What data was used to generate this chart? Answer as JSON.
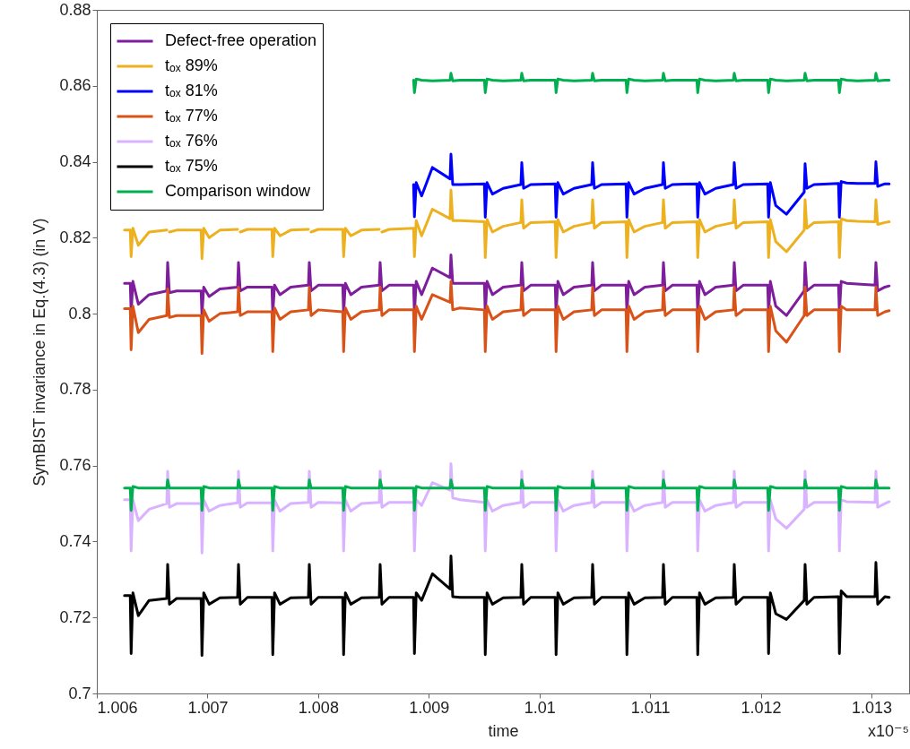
{
  "chart_data": {
    "type": "line",
    "xlabel": "time",
    "ylabel": "SymBIST invariance in Eq.(4.3) (in V)",
    "annotations": [
      "x10⁻⁵"
    ],
    "xlim": [
      1.006,
      1.01334
    ],
    "xticks": [
      1.006,
      1.007,
      1.008,
      1.009,
      1.01,
      1.011,
      1.012,
      1.013
    ],
    "ylim": [
      0.7,
      0.88
    ],
    "yticks": [
      0.7,
      0.72,
      0.74,
      0.76,
      0.78,
      0.8,
      0.82,
      0.84,
      0.86,
      0.88
    ],
    "grid": false,
    "legend": "top left",
    "x": [
      1.00625,
      1.006302,
      1.00631,
      1.006326,
      1.006375,
      1.006472,
      1.006632,
      1.00664,
      1.006656,
      1.006721,
      1.006942,
      1.00695,
      1.006966,
      1.007015,
      1.007112,
      1.007272,
      1.00728,
      1.007296,
      1.007361,
      1.007582,
      1.00759,
      1.007606,
      1.007655,
      1.007752,
      1.007912,
      1.00792,
      1.007936,
      1.008001,
      1.008222,
      1.00823,
      1.008246,
      1.008295,
      1.008392,
      1.008552,
      1.00856,
      1.008576,
      1.008641,
      1.008862,
      1.00887,
      1.008886,
      1.008935,
      1.009032,
      1.009192,
      1.0092,
      1.009216,
      1.009281,
      1.009502,
      1.00951,
      1.009526,
      1.009575,
      1.009672,
      1.009832,
      1.00984,
      1.009856,
      1.009921,
      1.010142,
      1.01015,
      1.010166,
      1.010215,
      1.010312,
      1.010472,
      1.01048,
      1.010496,
      1.010561,
      1.010782,
      1.01079,
      1.010806,
      1.010855,
      1.010952,
      1.011112,
      1.01112,
      1.011136,
      1.011201,
      1.011422,
      1.01143,
      1.011446,
      1.011495,
      1.011592,
      1.011752,
      1.01176,
      1.011776,
      1.011841,
      1.012062,
      1.01207,
      1.012086,
      1.012135,
      1.012232,
      1.012392,
      1.0124,
      1.012416,
      1.012481,
      1.012702,
      1.01271,
      1.012726,
      1.012775,
      1.012872,
      1.013032,
      1.01304,
      1.013056,
      1.013121,
      1.01316
    ],
    "series": [
      {
        "name": "Defect-free operation",
        "color": "#7e1e9c",
        "values": [
          0.808,
          0.808,
          0.8,
          0.8085,
          0.8025,
          0.805,
          0.806,
          0.8135,
          0.8055,
          0.806,
          0.806,
          0.7995,
          0.807,
          0.8045,
          0.8065,
          0.807,
          0.8135,
          0.806,
          0.807,
          0.807,
          0.8,
          0.8075,
          0.805,
          0.807,
          0.8075,
          0.8135,
          0.806,
          0.8075,
          0.8075,
          0.8,
          0.808,
          0.805,
          0.807,
          0.8075,
          0.8135,
          0.806,
          0.8075,
          0.8075,
          0.8,
          0.8085,
          0.805,
          0.812,
          0.8095,
          0.8155,
          0.808,
          0.808,
          0.808,
          0.8,
          0.8085,
          0.805,
          0.807,
          0.8075,
          0.8135,
          0.806,
          0.8075,
          0.8075,
          0.8,
          0.8085,
          0.805,
          0.807,
          0.8075,
          0.8135,
          0.806,
          0.8075,
          0.8075,
          0.8,
          0.8085,
          0.805,
          0.807,
          0.8075,
          0.8135,
          0.806,
          0.8075,
          0.8075,
          0.8,
          0.8085,
          0.805,
          0.807,
          0.8075,
          0.8135,
          0.806,
          0.8075,
          0.8075,
          0.8,
          0.8085,
          0.802,
          0.7995,
          0.806,
          0.8135,
          0.806,
          0.8075,
          0.8075,
          0.8,
          0.8085,
          0.808,
          0.8078,
          0.8075,
          0.8135,
          0.806,
          0.807,
          0.8073
        ]
      },
      {
        "name": "tₒₓ 89%",
        "color": "#edb120",
        "values": [
          0.822,
          0.822,
          0.815,
          0.8225,
          0.818,
          0.8215,
          0.822,
          null,
          0.8215,
          0.822,
          0.822,
          0.8145,
          0.8225,
          0.82,
          0.822,
          0.8222,
          null,
          0.8215,
          0.8222,
          0.8222,
          0.815,
          0.8225,
          0.8205,
          0.822,
          0.8222,
          null,
          0.8215,
          0.8222,
          0.8222,
          0.815,
          0.8225,
          0.8205,
          0.822,
          0.8222,
          null,
          0.8215,
          0.8222,
          0.8225,
          0.815,
          0.8245,
          0.8205,
          0.8275,
          0.825,
          0.8325,
          0.8245,
          0.8245,
          0.8242,
          0.8148,
          0.8248,
          0.8215,
          0.823,
          0.824,
          0.83,
          0.8225,
          0.824,
          0.8242,
          0.8148,
          0.8248,
          0.8215,
          0.823,
          0.824,
          0.83,
          0.8225,
          0.824,
          0.8242,
          0.8148,
          0.8248,
          0.8215,
          0.823,
          0.824,
          0.83,
          0.8225,
          0.824,
          0.8242,
          0.8148,
          0.8248,
          0.8215,
          0.823,
          0.824,
          0.83,
          0.8225,
          0.824,
          0.8242,
          0.8148,
          0.8248,
          0.819,
          0.8163,
          0.822,
          0.83,
          0.8225,
          0.824,
          0.8242,
          0.8148,
          0.825,
          0.8245,
          0.8243,
          0.8242,
          0.83,
          0.8235,
          0.824,
          0.8242
        ]
      },
      {
        "name": "tₒₓ 81%",
        "color": "#0000ff",
        "values": [
          null,
          null,
          null,
          null,
          null,
          null,
          null,
          null,
          null,
          null,
          null,
          null,
          null,
          null,
          null,
          null,
          null,
          null,
          null,
          null,
          null,
          null,
          null,
          null,
          null,
          null,
          null,
          null,
          null,
          null,
          null,
          null,
          null,
          null,
          null,
          null,
          null,
          0.834,
          0.8255,
          0.8345,
          0.831,
          0.8385,
          0.8355,
          0.842,
          0.834,
          0.834,
          0.8342,
          0.8254,
          0.8345,
          0.8315,
          0.833,
          0.834,
          0.8398,
          0.833,
          0.834,
          0.8342,
          0.8254,
          0.8345,
          0.8315,
          0.833,
          0.834,
          0.8398,
          0.833,
          0.834,
          0.8342,
          0.8254,
          0.8345,
          0.8315,
          0.833,
          0.834,
          0.8398,
          0.833,
          0.834,
          0.8342,
          0.8254,
          0.8345,
          0.8315,
          0.833,
          0.834,
          0.8398,
          0.833,
          0.834,
          0.8342,
          0.8254,
          0.8345,
          0.8285,
          0.8262,
          0.832,
          0.8395,
          0.833,
          0.834,
          0.8343,
          0.8254,
          0.8348,
          0.8344,
          0.8343,
          0.8343,
          0.84,
          0.8335,
          0.8342,
          0.8342
        ]
      },
      {
        "name": "tₒₓ 77%",
        "color": "#d95319",
        "values": [
          0.8013,
          0.8013,
          0.7905,
          0.802,
          0.795,
          0.7985,
          0.7995,
          0.8065,
          0.799,
          0.7995,
          0.7995,
          0.7895,
          0.801,
          0.798,
          0.8,
          0.8005,
          0.807,
          0.7995,
          0.8005,
          0.8005,
          0.79,
          0.8015,
          0.7985,
          0.8005,
          0.801,
          0.807,
          0.7995,
          0.801,
          0.8005,
          0.79,
          0.8015,
          0.7985,
          0.8005,
          0.801,
          0.807,
          0.7995,
          0.801,
          0.801,
          0.79,
          0.802,
          0.7985,
          0.805,
          0.803,
          0.8085,
          0.801,
          0.8015,
          0.801,
          0.79,
          0.802,
          0.7985,
          0.8005,
          0.801,
          0.807,
          0.7995,
          0.801,
          0.801,
          0.79,
          0.802,
          0.7985,
          0.8005,
          0.801,
          0.807,
          0.7995,
          0.801,
          0.801,
          0.79,
          0.802,
          0.7985,
          0.8005,
          0.801,
          0.807,
          0.7995,
          0.801,
          0.801,
          0.79,
          0.802,
          0.7985,
          0.8005,
          0.801,
          0.807,
          0.7995,
          0.801,
          0.801,
          0.79,
          0.802,
          0.7955,
          0.7925,
          0.7995,
          0.807,
          0.7995,
          0.801,
          0.801,
          0.79,
          0.802,
          0.801,
          0.801,
          0.801,
          0.807,
          0.7995,
          0.8005,
          0.8008
        ]
      },
      {
        "name": "tₒₓ 76%",
        "color": "#d9b3ff",
        "values": [
          0.751,
          0.751,
          0.7375,
          0.751,
          0.7455,
          0.7485,
          0.75,
          0.7585,
          0.749,
          0.75,
          0.75,
          0.737,
          0.751,
          0.748,
          0.7495,
          0.7502,
          0.7585,
          0.749,
          0.7502,
          0.7502,
          0.7375,
          0.751,
          0.748,
          0.75,
          0.7503,
          0.7585,
          0.749,
          0.7503,
          0.7502,
          0.7375,
          0.751,
          0.748,
          0.75,
          0.7503,
          0.7585,
          0.749,
          0.7503,
          0.7503,
          0.7375,
          0.751,
          0.7495,
          0.7555,
          0.7535,
          0.7605,
          0.7515,
          0.751,
          0.7503,
          0.7375,
          0.751,
          0.748,
          0.7495,
          0.7503,
          0.7585,
          0.749,
          0.7503,
          0.7503,
          0.7375,
          0.751,
          0.748,
          0.7495,
          0.7503,
          0.7585,
          0.749,
          0.7503,
          0.7503,
          0.7375,
          0.751,
          0.748,
          0.7495,
          0.7503,
          0.7585,
          0.749,
          0.7503,
          0.7503,
          0.7375,
          0.751,
          0.748,
          0.7495,
          0.7503,
          0.7585,
          0.749,
          0.7503,
          0.7503,
          0.7375,
          0.751,
          0.746,
          0.7435,
          0.7485,
          0.7585,
          0.749,
          0.7503,
          0.7503,
          0.7375,
          0.751,
          0.7505,
          0.7504,
          0.7503,
          0.7585,
          0.749,
          0.75,
          0.7505
        ]
      },
      {
        "name": "tₒₓ 75%",
        "color": "#000000",
        "values": [
          0.7258,
          0.7258,
          0.7105,
          0.7265,
          0.7205,
          0.7245,
          0.725,
          0.734,
          0.7235,
          0.725,
          0.725,
          0.71,
          0.7265,
          0.7235,
          0.7252,
          0.7253,
          0.734,
          0.7235,
          0.7253,
          0.7253,
          0.7102,
          0.7265,
          0.7235,
          0.7252,
          0.7253,
          0.734,
          0.7235,
          0.7253,
          0.7253,
          0.7102,
          0.7265,
          0.7235,
          0.7252,
          0.7253,
          0.734,
          0.7235,
          0.7253,
          0.7253,
          0.7105,
          0.7265,
          0.7245,
          0.7315,
          0.7275,
          0.7362,
          0.7255,
          0.7253,
          0.7253,
          0.7102,
          0.7265,
          0.7235,
          0.7252,
          0.7253,
          0.734,
          0.7235,
          0.7253,
          0.7253,
          0.7102,
          0.7265,
          0.7235,
          0.7252,
          0.7253,
          0.734,
          0.7235,
          0.7253,
          0.7253,
          0.7102,
          0.7265,
          0.7235,
          0.7252,
          0.7253,
          0.734,
          0.7235,
          0.7253,
          0.7253,
          0.7102,
          0.7265,
          0.7235,
          0.7252,
          0.7253,
          0.734,
          0.7235,
          0.7253,
          0.7253,
          0.7105,
          0.7265,
          0.721,
          0.7195,
          0.7245,
          0.734,
          0.7235,
          0.7253,
          0.7255,
          0.7105,
          0.727,
          0.7255,
          0.7255,
          0.7255,
          0.7345,
          0.7235,
          0.7255,
          0.7253
        ]
      },
      {
        "name": "Comparison window",
        "color": "#00b050",
        "values": [
          null,
          null,
          null,
          null,
          null,
          null,
          null,
          null,
          null,
          null,
          null,
          null,
          null,
          null,
          null,
          null,
          null,
          null,
          null,
          null,
          null,
          null,
          null,
          null,
          null,
          null,
          null,
          null,
          null,
          null,
          null,
          null,
          null,
          null,
          null,
          null,
          null,
          0.8615,
          0.8582,
          0.8618,
          0.8615,
          0.8613,
          0.8615,
          0.8633,
          0.8613,
          0.8615,
          0.8615,
          0.8582,
          0.8618,
          0.8615,
          0.8613,
          0.8615,
          0.8633,
          0.8613,
          0.8615,
          0.8615,
          0.8582,
          0.8618,
          0.8615,
          0.8613,
          0.8615,
          0.8633,
          0.8613,
          0.8615,
          0.8615,
          0.8582,
          0.8618,
          0.8615,
          0.8613,
          0.8615,
          0.8633,
          0.8613,
          0.8615,
          0.8615,
          0.8582,
          0.8618,
          0.8615,
          0.8613,
          0.8615,
          0.8633,
          0.8613,
          0.8615,
          0.8615,
          0.8582,
          0.8618,
          0.8615,
          0.8613,
          0.8615,
          0.8633,
          0.8613,
          0.8615,
          0.8615,
          0.8582,
          0.8618,
          0.8615,
          0.8613,
          0.8615,
          0.8633,
          0.8613,
          0.8615,
          0.8615
        ]
      },
      {
        "color": "#00b050",
        "values": [
          0.7541,
          0.7541,
          0.7482,
          0.7545,
          0.7541,
          0.7541,
          0.7541,
          0.7562,
          0.7541,
          0.7541,
          0.7541,
          0.7482,
          0.7545,
          0.7541,
          0.7541,
          0.7541,
          0.7562,
          0.7541,
          0.7541,
          0.7541,
          0.7482,
          0.7545,
          0.7541,
          0.7541,
          0.7541,
          0.7562,
          0.7541,
          0.7541,
          0.7541,
          0.7482,
          0.7545,
          0.7541,
          0.7541,
          0.7541,
          0.7562,
          0.7541,
          0.7541,
          0.7541,
          0.7482,
          0.7545,
          0.7541,
          0.7541,
          0.7541,
          0.7562,
          0.7541,
          0.7541,
          0.7541,
          0.7482,
          0.7545,
          0.7541,
          0.7541,
          0.7541,
          0.7562,
          0.7541,
          0.7541,
          0.7541,
          0.7482,
          0.7545,
          0.7541,
          0.7541,
          0.7541,
          0.7562,
          0.7541,
          0.7541,
          0.7541,
          0.7482,
          0.7545,
          0.7541,
          0.7541,
          0.7541,
          0.7562,
          0.7541,
          0.7541,
          0.7541,
          0.7482,
          0.7545,
          0.7541,
          0.7541,
          0.7541,
          0.7562,
          0.7541,
          0.7541,
          0.7541,
          0.7482,
          0.7545,
          0.7541,
          0.7541,
          0.7541,
          0.7562,
          0.7541,
          0.7541,
          0.7541,
          0.7482,
          0.7545,
          0.7541,
          0.7541,
          0.7541,
          0.7562,
          0.7541,
          0.7541,
          0.7541
        ]
      }
    ]
  }
}
